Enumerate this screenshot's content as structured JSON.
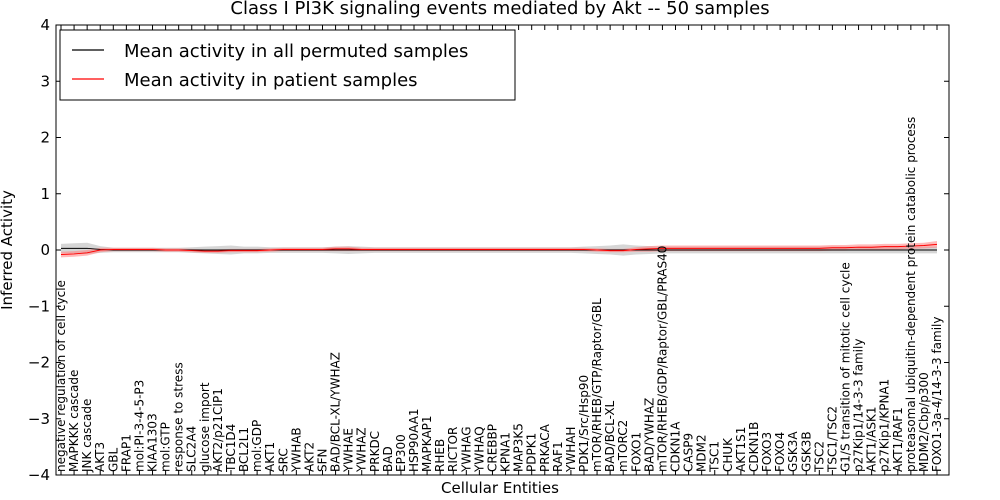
{
  "chart_data": {
    "type": "line",
    "title": "Class I PI3K signaling events mediated by Akt -- 50 samples",
    "xlabel": "Cellular Entities",
    "ylabel": "Inferred Activity",
    "ylim": [
      -4,
      4
    ],
    "yticks": [
      "4",
      "3",
      "2",
      "1",
      "0",
      "−1",
      "−2",
      "−3",
      "−4"
    ],
    "legend_position": "top-left",
    "colors": {
      "permuted": "#000000",
      "patient": "#ff0000",
      "permuted_band": "#bbbbbb",
      "patient_band": "#ff8080"
    },
    "categories": [
      "negative regulation of cell cycle",
      "MAPKKK cascade",
      "JNK cascade",
      "AKT3",
      "GBL",
      "FRAP1",
      "mol:PI-3-4-5-P3",
      "KIAA1303",
      "mol:GTP",
      "response to stress",
      "SLC2A4",
      "glucose import",
      "AKT2/p21CIP1",
      "TBC1D4",
      "BCL2L1",
      "mol:GDP",
      "AKT1",
      "SRC",
      "YWHAB",
      "AKT2",
      "SFN",
      "BAD/BCL-XL/YWHAZ",
      "YWHAE",
      "YWHAZ",
      "PRKDC",
      "BAD",
      "EP300",
      "HSP90AA1",
      "MAPKAP1",
      "RHEB",
      "RICTOR",
      "YWHAG",
      "YWHAQ",
      "CREBBP",
      "KPNA1",
      "MAP3K5",
      "PDPK1",
      "PRKACA",
      "RAF1",
      "YWHAH",
      "PDK1/Src/Hsp90",
      "mTOR/RHEB/GTP/Raptor/GBL",
      "BAD/BCL-XL",
      "mTORC2",
      "FOXO1",
      "BAD/YWHAZ",
      "mTOR/RHEB/GDP/Raptor/GBL/PRAS40",
      "CDKN1A",
      "CASP9",
      "MDM2",
      "TSC1",
      "CHUK",
      "AKT1S1",
      "CDKN1B",
      "FOXO3",
      "FOXO4",
      "GSK3A",
      "GSK3B",
      "TSC2",
      "TSC1/TSC2",
      "G1/S transition of mitotic cell cycle",
      "p27Kip1/14-3-3 family",
      "AKT1/ASK1",
      "p27Kip1/KPNA1",
      "AKT1/RAF1",
      "proteasomal ubiquitin-dependent protein catabolic process",
      "MDM2/Cbp/p300",
      "FOXO1-3a-4/14-3-3 family"
    ],
    "series": [
      {
        "name": "Mean activity in all permuted samples",
        "values": [
          0.03,
          0.03,
          0.03,
          0.01,
          0,
          0,
          0,
          0,
          0,
          0,
          0,
          0,
          0,
          0,
          0,
          0,
          0,
          0,
          0,
          0,
          0,
          0,
          0,
          0,
          0,
          0,
          0,
          0,
          0,
          0,
          0,
          0,
          0,
          0,
          0,
          0,
          0,
          0,
          0,
          0,
          0,
          0,
          0,
          0,
          0,
          0,
          0,
          0,
          0,
          0,
          0,
          0,
          0,
          0,
          0,
          0,
          0,
          0,
          0,
          0,
          0,
          0,
          0,
          0,
          0,
          0,
          0,
          0
        ],
        "band": [
          0.08,
          0.09,
          0.1,
          0.06,
          0.04,
          0.04,
          0.04,
          0.04,
          0.04,
          0.04,
          0.05,
          0.06,
          0.07,
          0.08,
          0.06,
          0.06,
          0.05,
          0.05,
          0.05,
          0.05,
          0.05,
          0.06,
          0.07,
          0.06,
          0.05,
          0.05,
          0.05,
          0.05,
          0.05,
          0.05,
          0.05,
          0.05,
          0.05,
          0.05,
          0.05,
          0.05,
          0.05,
          0.05,
          0.05,
          0.05,
          0.06,
          0.07,
          0.08,
          0.1,
          0.08,
          0.07,
          0.06,
          0.06,
          0.06,
          0.06,
          0.06,
          0.06,
          0.06,
          0.06,
          0.06,
          0.06,
          0.06,
          0.06,
          0.06,
          0.06,
          0.06,
          0.06,
          0.06,
          0.06,
          0.06,
          0.06,
          0.06,
          0.06
        ]
      },
      {
        "name": "Mean activity in patient samples",
        "values": [
          -0.08,
          -0.07,
          -0.05,
          0,
          0.01,
          0.01,
          0.01,
          0.01,
          0,
          0,
          -0.01,
          -0.02,
          -0.02,
          -0.01,
          -0.01,
          -0.01,
          0,
          0.01,
          0.01,
          0.01,
          0.01,
          0.02,
          0.02,
          0.01,
          0.01,
          0.01,
          0.01,
          0.01,
          0.01,
          0.01,
          0.01,
          0.01,
          0.01,
          0.01,
          0.01,
          0.01,
          0.01,
          0.01,
          0.01,
          0.01,
          0.01,
          0,
          -0.01,
          -0.01,
          0.01,
          0.02,
          0.03,
          0.03,
          0.03,
          0.03,
          0.03,
          0.03,
          0.03,
          0.03,
          0.03,
          0.03,
          0.03,
          0.03,
          0.03,
          0.04,
          0.04,
          0.05,
          0.05,
          0.06,
          0.06,
          0.07,
          0.08,
          0.1
        ],
        "band": [
          0.05,
          0.05,
          0.05,
          0.04,
          0.03,
          0.03,
          0.03,
          0.03,
          0.03,
          0.03,
          0.03,
          0.03,
          0.03,
          0.03,
          0.03,
          0.03,
          0.03,
          0.03,
          0.03,
          0.03,
          0.03,
          0.04,
          0.04,
          0.03,
          0.03,
          0.03,
          0.03,
          0.03,
          0.03,
          0.03,
          0.03,
          0.03,
          0.03,
          0.03,
          0.03,
          0.03,
          0.03,
          0.03,
          0.03,
          0.03,
          0.03,
          0.03,
          0.03,
          0.03,
          0.04,
          0.05,
          0.05,
          0.05,
          0.05,
          0.05,
          0.05,
          0.05,
          0.05,
          0.05,
          0.05,
          0.05,
          0.05,
          0.05,
          0.05,
          0.05,
          0.05,
          0.05,
          0.05,
          0.05,
          0.05,
          0.05,
          0.05,
          0.06
        ]
      }
    ]
  }
}
